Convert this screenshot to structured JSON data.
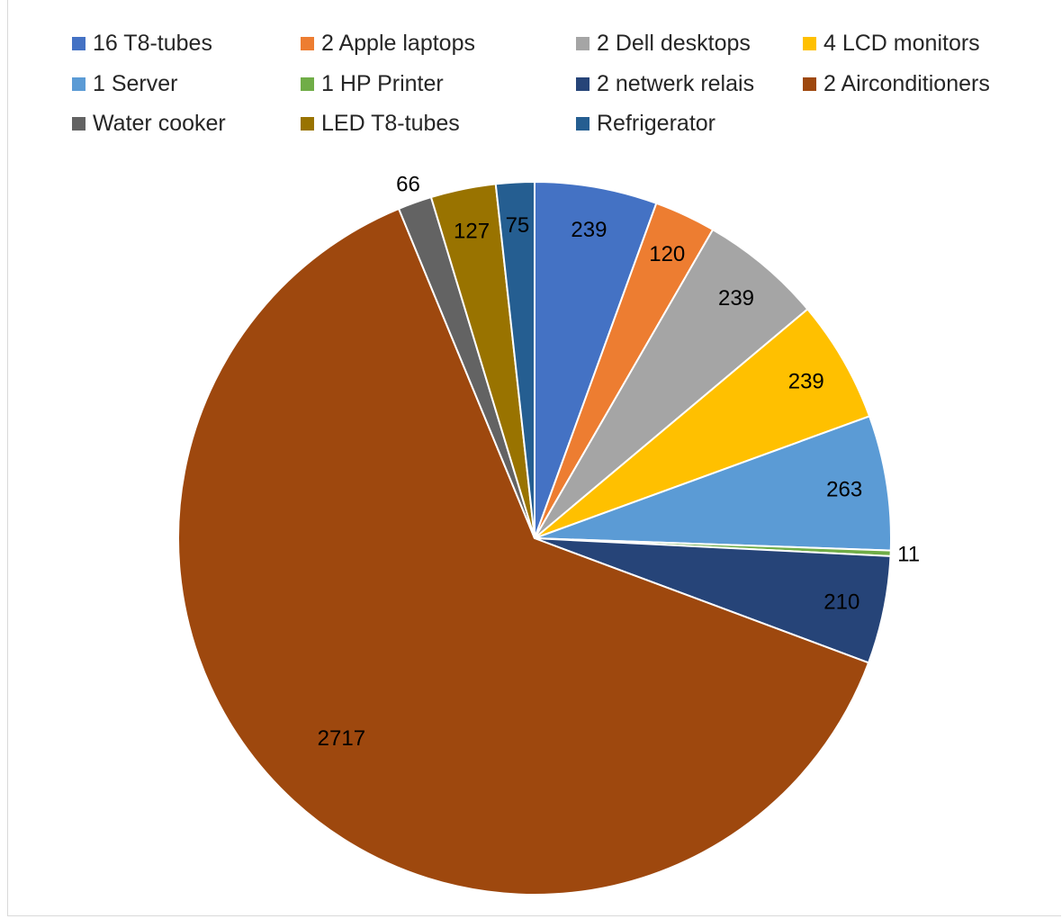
{
  "chart_data": {
    "type": "pie",
    "title": "",
    "legend_position": "top",
    "slices": [
      {
        "label": "16 T8-tubes",
        "value": 239,
        "color": "#4472C4"
      },
      {
        "label": "2 Apple laptops",
        "value": 120,
        "color": "#ED7D31"
      },
      {
        "label": "2 Dell desktops",
        "value": 239,
        "color": "#A5A5A5"
      },
      {
        "label": "4 LCD monitors",
        "value": 239,
        "color": "#FFC000"
      },
      {
        "label": "1 Server",
        "value": 263,
        "color": "#5B9BD5"
      },
      {
        "label": "1 HP Printer",
        "value": 11,
        "color": "#70AD47"
      },
      {
        "label": "2 netwerk relais",
        "value": 210,
        "color": "#264478"
      },
      {
        "label": "2 Airconditioners",
        "value": 2717,
        "color": "#9E480E"
      },
      {
        "label": "Water cooker",
        "value": 66,
        "color": "#636363"
      },
      {
        "label": "LED T8-tubes",
        "value": 127,
        "color": "#997300"
      },
      {
        "label": "Refrigerator",
        "value": 75,
        "color": "#255E91"
      }
    ]
  }
}
